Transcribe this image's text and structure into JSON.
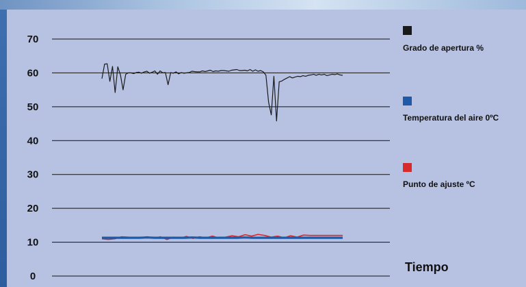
{
  "chart_data": {
    "type": "line",
    "xlabel": "Tiempo",
    "ylabel": "",
    "ylim": [
      0,
      70
    ],
    "yticks": [
      0,
      10,
      20,
      30,
      40,
      50,
      60,
      70
    ],
    "grid": true,
    "legend_position": "right",
    "series": [
      {
        "name": "Grado de apertura %",
        "color": "#1a1a1a",
        "values": [
          58.3,
          62.6,
          62.7,
          57.5,
          61.9,
          54.2,
          61.8,
          59.4,
          55.0,
          59.6,
          60.0,
          60.0,
          59.8,
          60.1,
          60.2,
          59.9,
          60.3,
          60.5,
          59.9,
          60.2,
          60.6,
          59.6,
          60.6,
          60.0,
          60.1,
          56.5,
          60.1,
          59.9,
          60.3,
          59.7,
          60.1,
          59.9,
          60.0,
          60.1,
          60.5,
          60.4,
          60.3,
          60.3,
          60.6,
          60.4,
          60.6,
          60.8,
          60.4,
          60.6,
          60.5,
          60.7,
          60.7,
          60.6,
          60.5,
          60.8,
          60.9,
          61.0,
          60.7,
          60.7,
          60.8,
          60.6,
          61.0,
          60.5,
          60.9,
          60.5,
          60.7,
          60.3,
          59.3,
          51.3,
          47.6,
          59.0,
          45.8,
          57.4,
          57.6,
          58.1,
          58.5,
          58.9,
          58.5,
          58.8,
          59.0,
          58.9,
          59.2,
          59.0,
          59.3,
          59.4,
          59.6,
          59.3,
          59.6,
          59.4,
          59.6,
          59.2,
          59.4,
          59.6,
          59.5,
          59.7,
          59.4,
          59.3
        ]
      },
      {
        "name": "Temperatura del aire 0ºC",
        "color": "#1f5aa6",
        "values": [
          11.3,
          11.3,
          11.3,
          11.3,
          11.3,
          11.3,
          11.4,
          11.3,
          11.3,
          11.3,
          11.3,
          11.3,
          11.4,
          11.3,
          11.3,
          11.3,
          11.3,
          11.3,
          11.3,
          11.4,
          11.3,
          11.3,
          11.3,
          11.3,
          11.3,
          11.3,
          11.3,
          11.3,
          11.3,
          11.3,
          11.3,
          11.3,
          11.3
        ]
      },
      {
        "name": "Punto de ajuste ºC",
        "color": "#d82a2a",
        "values": [
          11.0,
          10.8,
          11.0,
          11.6,
          11.5,
          11.3,
          11.4,
          11.6,
          11.2,
          11.6,
          10.8,
          11.5,
          11.2,
          11.7,
          11.1,
          11.6,
          11.3,
          11.8,
          11.2,
          11.5,
          11.9,
          11.6,
          12.2,
          11.8,
          12.3,
          12.0,
          11.5,
          11.8,
          11.3,
          11.9,
          11.5,
          12.1,
          12.0,
          12.0,
          12.0,
          12.0,
          12.0,
          12.0
        ]
      }
    ]
  }
}
